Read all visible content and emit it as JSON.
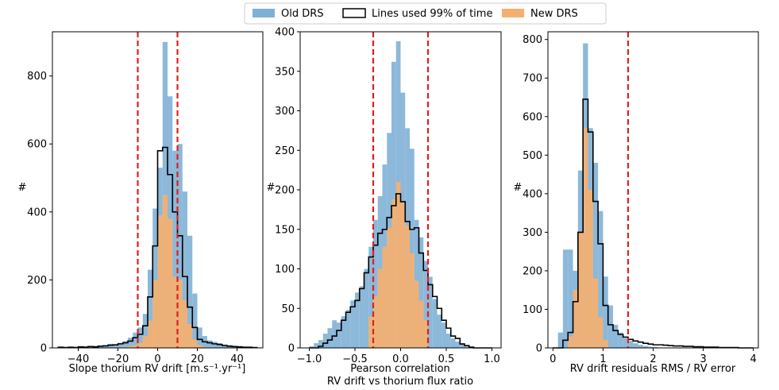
{
  "legend": {
    "items": [
      {
        "label": "Old DRS",
        "color": "#7fb0d6",
        "style": "fill"
      },
      {
        "label": "Lines used 99% of time",
        "color": "#000000",
        "style": "outline"
      },
      {
        "label": "New DRS",
        "color": "#f5b070",
        "style": "fill"
      }
    ]
  },
  "colors": {
    "old": "#7fb0d6",
    "new": "#f5b070",
    "step": "#000000",
    "vline": "#e0201b"
  },
  "chart_data": [
    {
      "type": "histogram",
      "title": "",
      "xlabel": "Slope thorium RV drift [m.s⁻¹.yr⁻¹]",
      "xlabel2": "",
      "ylabel": "#",
      "xlim": [
        -53,
        53
      ],
      "ylim": [
        0,
        930
      ],
      "xticks": [
        -40,
        -20,
        0,
        20,
        40
      ],
      "xtick_labels": [
        "−40",
        "−20",
        "0",
        "20",
        "40"
      ],
      "yticks": [
        0,
        200,
        400,
        600,
        800
      ],
      "bin_start": -50,
      "bin_width": 2.5,
      "old_drs": [
        1,
        2,
        1,
        3,
        2,
        5,
        3,
        6,
        5,
        8,
        12,
        10,
        15,
        20,
        30,
        45,
        60,
        100,
        230,
        410,
        530,
        900,
        740,
        580,
        600,
        460,
        330,
        160,
        60,
        35,
        22,
        18,
        14,
        10,
        8,
        6,
        5,
        4,
        3,
        2
      ],
      "new_drs": [
        0,
        0,
        0,
        0,
        0,
        0,
        0,
        0,
        0,
        0,
        0,
        1,
        2,
        3,
        5,
        8,
        15,
        35,
        80,
        200,
        390,
        450,
        380,
        210,
        200,
        140,
        70,
        25,
        8,
        3,
        2,
        1,
        0,
        0,
        0,
        0,
        0,
        0,
        0,
        0
      ],
      "lines_used": [
        2,
        1,
        2,
        1,
        3,
        2,
        4,
        3,
        5,
        6,
        8,
        9,
        12,
        15,
        20,
        30,
        40,
        65,
        150,
        300,
        580,
        590,
        510,
        400,
        330,
        210,
        120,
        60,
        25,
        18,
        15,
        12,
        10,
        7,
        5,
        4,
        3,
        2,
        2,
        1
      ],
      "vlines": [
        -10,
        10
      ]
    },
    {
      "type": "histogram",
      "title": "",
      "xlabel": "Pearson correlation",
      "xlabel2": "RV drift vs thorium flux ratio",
      "ylabel": "#",
      "xlim": [
        -1.1,
        1.1
      ],
      "ylim": [
        0,
        400
      ],
      "xticks": [
        -1.0,
        -0.5,
        0.0,
        0.5,
        1.0
      ],
      "xtick_labels": [
        "−1.0",
        "−0.5",
        "0.0",
        "0.5",
        "1.0"
      ],
      "yticks": [
        0,
        50,
        100,
        150,
        200,
        250,
        300,
        350,
        400
      ],
      "bin_start": -1.0,
      "bin_width": 0.05,
      "old_drs": [
        2,
        6,
        10,
        18,
        25,
        35,
        32,
        40,
        48,
        60,
        70,
        78,
        100,
        128,
        162,
        192,
        232,
        272,
        362,
        388,
        323,
        278,
        252,
        162,
        140,
        110,
        90,
        62,
        42,
        32,
        18,
        12,
        8,
        6,
        2,
        0,
        0,
        0,
        0,
        0
      ],
      "new_drs": [
        0,
        0,
        0,
        0,
        0,
        0,
        0,
        0,
        0,
        0,
        0,
        0,
        0,
        40,
        65,
        100,
        128,
        152,
        188,
        210,
        185,
        155,
        120,
        85,
        60,
        35,
        0,
        0,
        0,
        0,
        0,
        0,
        0,
        0,
        0,
        0,
        0,
        0,
        0,
        0
      ],
      "lines_used": [
        0,
        0,
        2,
        6,
        10,
        15,
        22,
        35,
        45,
        52,
        60,
        75,
        95,
        115,
        130,
        145,
        150,
        165,
        180,
        195,
        185,
        160,
        150,
        152,
        120,
        98,
        80,
        65,
        50,
        35,
        25,
        15,
        12,
        5,
        3,
        1,
        0,
        0,
        0,
        0
      ],
      "vlines": [
        -0.3,
        0.3
      ]
    },
    {
      "type": "histogram",
      "title": "",
      "xlabel": "RV drift residuals RMS / RV error",
      "xlabel2": "",
      "ylabel": "#",
      "xlim": [
        -0.1,
        4.1
      ],
      "ylim": [
        0,
        820
      ],
      "xticks": [
        0,
        1,
        2,
        3,
        4
      ],
      "xtick_labels": [
        "0",
        "1",
        "2",
        "3",
        "4"
      ],
      "yticks": [
        0,
        100,
        200,
        300,
        400,
        500,
        600,
        700,
        800
      ],
      "bin_start": 0.0,
      "bin_width": 0.1,
      "old_drs": [
        0,
        40,
        255,
        255,
        200,
        460,
        790,
        570,
        480,
        355,
        185,
        110,
        60,
        40,
        25,
        18,
        12,
        8,
        5,
        3,
        2,
        1,
        0,
        0,
        0,
        0,
        0,
        0,
        0,
        0,
        0,
        0,
        0,
        0,
        0,
        0,
        0,
        0,
        0,
        0
      ],
      "new_drs": [
        0,
        0,
        0,
        30,
        150,
        300,
        570,
        410,
        180,
        80,
        20,
        0,
        0,
        0,
        0,
        0,
        0,
        0,
        0,
        0,
        0,
        0,
        0,
        0,
        0,
        0,
        0,
        0,
        0,
        0,
        0,
        0,
        0,
        0,
        0,
        0,
        0,
        0,
        0,
        0
      ],
      "lines_used": [
        0,
        0,
        20,
        40,
        120,
        300,
        645,
        560,
        380,
        270,
        110,
        60,
        45,
        35,
        28,
        22,
        18,
        15,
        12,
        10,
        8,
        8,
        7,
        6,
        5,
        5,
        4,
        4,
        3,
        3,
        2,
        2,
        2,
        1,
        1,
        1,
        1,
        0,
        0,
        0
      ],
      "vlines": [
        1.5
      ]
    }
  ]
}
